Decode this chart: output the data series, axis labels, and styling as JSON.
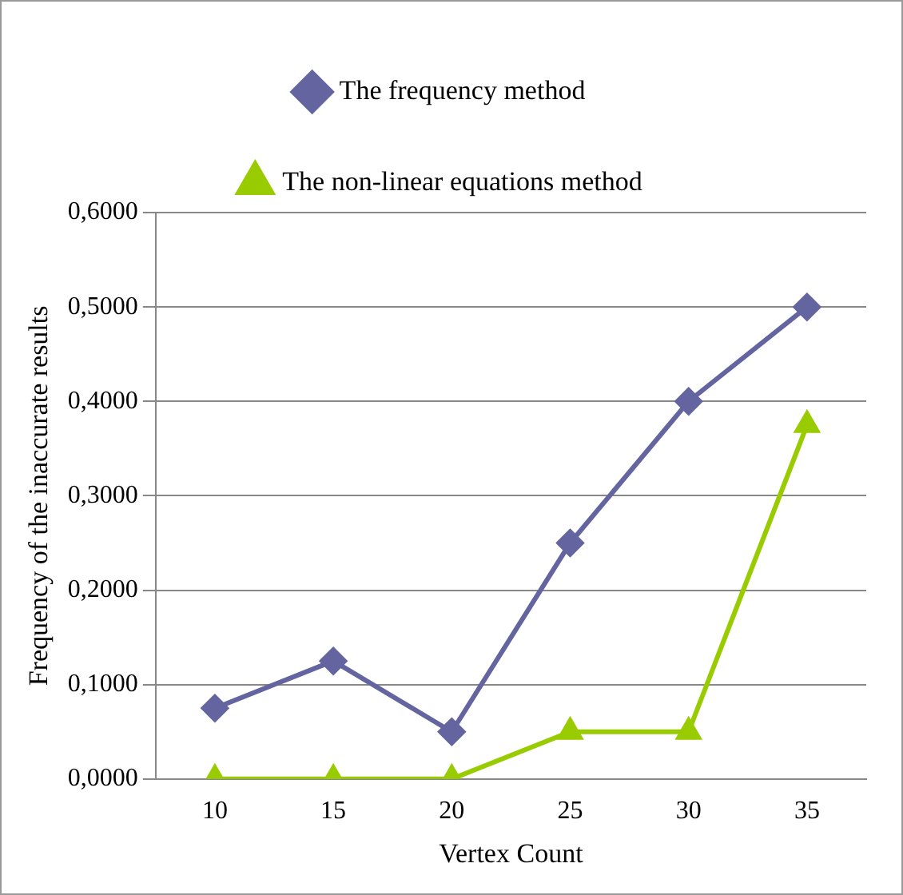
{
  "chart_data": {
    "type": "line",
    "xlabel": "Vertex Count",
    "ylabel": "Frequency of the inaccurate results",
    "categories": [
      "10",
      "15",
      "20",
      "25",
      "30",
      "35"
    ],
    "series": [
      {
        "name": "The frequency method",
        "color": "#6464a0",
        "marker": "diamond",
        "values": [
          0.075,
          0.125,
          0.05,
          0.25,
          0.4,
          0.5
        ]
      },
      {
        "name": "The non-linear equations method",
        "color": "#99cc00",
        "marker": "triangle",
        "values": [
          0,
          0,
          0,
          0.05,
          0.05,
          0.375
        ]
      }
    ],
    "ylim": [
      0,
      0.6
    ],
    "yticks": [
      {
        "value": 0,
        "label": "0,0000"
      },
      {
        "value": 0.1,
        "label": "0,1000"
      },
      {
        "value": 0.2,
        "label": "0,2000"
      },
      {
        "value": 0.3,
        "label": "0,3000"
      },
      {
        "value": 0.4,
        "label": "0,4000"
      },
      {
        "value": 0.5,
        "label": "0,5000"
      },
      {
        "value": 0.6,
        "label": "0,6000"
      }
    ],
    "grid": "y",
    "legend": "top",
    "line_style": "solid"
  }
}
